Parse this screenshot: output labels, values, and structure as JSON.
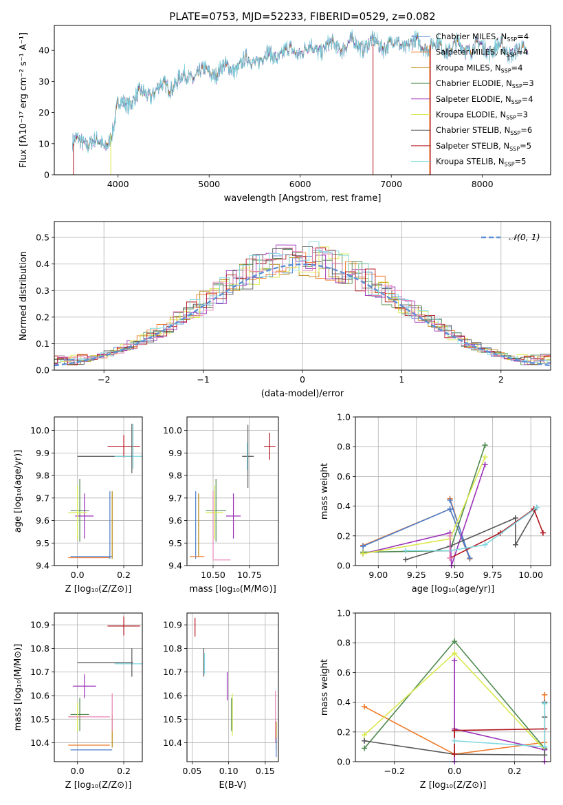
{
  "title": "PLATE=0753, MJD=52233, FIBERID=0529, z=0.082",
  "colors": {
    "chabrier_miles": "#4d7fcf",
    "salpeter_miles": "#f07a2a",
    "kroupa_miles": "#b8860b",
    "chabrier_elodie": "#4f8a4f",
    "salpeter_elodie": "#9b30b8",
    "kroupa_elodie": "#d9e84a",
    "chabrier_stelib": "#555555",
    "salpeter_stelib": "#b0141c",
    "kroupa_stelib": "#7fd8e0",
    "pink": "#e884b8",
    "normal": "#5b8fd6"
  },
  "legend_labels": [
    {
      "key": "chabrier_miles",
      "text": "Chabrier MILES, N",
      "sub": "SSP",
      "tail": "=4"
    },
    {
      "key": "salpeter_miles",
      "text": "Salpeter MILES, N",
      "sub": "SSP",
      "tail": "=4"
    },
    {
      "key": "kroupa_miles",
      "text": "Kroupa MILES, N",
      "sub": "SSP",
      "tail": "=4"
    },
    {
      "key": "chabrier_elodie",
      "text": "Chabrier ELODIE, N",
      "sub": "SSP",
      "tail": "=3"
    },
    {
      "key": "salpeter_elodie",
      "text": "Salpeter ELODIE, N",
      "sub": "SSP",
      "tail": "=4"
    },
    {
      "key": "kroupa_elodie",
      "text": "Kroupa ELODIE, N",
      "sub": "SSP",
      "tail": "=3"
    },
    {
      "key": "chabrier_stelib",
      "text": "Chabrier STELIB, N",
      "sub": "SSP",
      "tail": "=6"
    },
    {
      "key": "salpeter_stelib",
      "text": "Salpeter STELIB, N",
      "sub": "SSP",
      "tail": "=5"
    },
    {
      "key": "kroupa_stelib",
      "text": "Kroupa STELIB, N",
      "sub": "SSP",
      "tail": "=5"
    }
  ],
  "chart_data": [
    {
      "id": "spectrum",
      "type": "line",
      "xlabel": "wavelength [Angstrom, rest frame]",
      "ylabel": "Flux [fλ10⁻¹⁷ erg cm⁻² s⁻¹ A⁻¹]",
      "xlim": [
        3300,
        8750
      ],
      "ylim": [
        0,
        48
      ],
      "xticks": [
        4000,
        5000,
        6000,
        7000,
        8000
      ],
      "yticks": [
        0,
        10,
        20,
        30,
        40
      ],
      "continuum": [
        [
          3500,
          10
        ],
        [
          3700,
          11
        ],
        [
          3850,
          9
        ],
        [
          3950,
          15
        ],
        [
          4000,
          22
        ],
        [
          4200,
          25
        ],
        [
          4500,
          28
        ],
        [
          4800,
          32
        ],
        [
          5000,
          33
        ],
        [
          5200,
          34
        ],
        [
          5500,
          37
        ],
        [
          5800,
          39
        ],
        [
          6000,
          40
        ],
        [
          6300,
          41
        ],
        [
          6600,
          42
        ],
        [
          7000,
          42
        ],
        [
          7300,
          42
        ],
        [
          7600,
          41
        ],
        [
          8000,
          41
        ],
        [
          8300,
          40
        ],
        [
          8500,
          39
        ]
      ],
      "grid": false
    },
    {
      "id": "residuals",
      "type": "histogram",
      "xlabel": "(data-model)/error",
      "ylabel": "Normed distribution",
      "xlim": [
        -2.5,
        2.5
      ],
      "ylim": [
        0,
        0.56
      ],
      "xticks": [
        -2,
        -1,
        0,
        1,
        2
      ],
      "yticks": [
        0.0,
        0.1,
        0.2,
        0.3,
        0.4,
        0.5
      ],
      "legend": "𝒩(0, 1)",
      "grid": true
    },
    {
      "id": "age_vs_Z",
      "type": "errorbar",
      "xlabel": "Z [log₁₀(Z/Z⊙)]",
      "ylabel": "age  [log₁₀(age/yr)]",
      "xlim": [
        -0.1,
        0.28
      ],
      "ylim": [
        9.4,
        10.06
      ],
      "xticks": [
        0.0,
        0.2
      ],
      "yticks": [
        9.4,
        9.5,
        9.6,
        9.7,
        9.8,
        9.9,
        10.0
      ],
      "points": [
        {
          "c": "chabrier_miles",
          "x": 0.06,
          "y": 9.44,
          "xe": 0.09,
          "ye": 0.0
        },
        {
          "c": "salpeter_miles",
          "x": 0.05,
          "y": 9.435,
          "xe": 0.09,
          "ye": 0.0
        },
        {
          "c": "kroupa_miles",
          "x": 0.15,
          "y": 9.58,
          "xe": 0.0,
          "ye": 0.15
        },
        {
          "c": "chabrier_elodie",
          "x": 0.01,
          "y": 9.645,
          "xe": 0.04,
          "ye": 0.14
        },
        {
          "c": "salpeter_elodie",
          "x": 0.03,
          "y": 9.62,
          "xe": 0.04,
          "ye": 0.1
        },
        {
          "c": "kroupa_elodie",
          "x": 0.0,
          "y": 9.635,
          "xe": 0.04,
          "ye": 0.12
        },
        {
          "c": "chabrier_stelib",
          "x": 0.12,
          "y": 9.885,
          "xe": 0.12,
          "ye": 0.0
        },
        {
          "c": "salpeter_stelib",
          "x": 0.2,
          "y": 9.93,
          "xe": 0.07,
          "ye": 0.05
        },
        {
          "c": "kroupa_stelib",
          "x": 0.23,
          "y": 9.885,
          "xe": 0.07,
          "ye": 0.0
        },
        {
          "c": "chabrier_miles",
          "x": 0.14,
          "y": 9.58,
          "xe": 0.0,
          "ye": 0.15
        },
        {
          "c": "chabrier_stelib",
          "x": 0.235,
          "y": 9.92,
          "xe": 0.0,
          "ye": 0.11
        },
        {
          "c": "kroupa_stelib",
          "x": 0.24,
          "y": 9.93,
          "xe": 0.0,
          "ye": 0.1
        }
      ],
      "grid": true
    },
    {
      "id": "age_vs_mass",
      "type": "errorbar",
      "xlabel": "mass [log₁₀(M/M⊙)]",
      "xlim": [
        10.32,
        10.95
      ],
      "ylim": [
        9.4,
        10.06
      ],
      "xticks": [
        10.5,
        10.75
      ],
      "yticks": [
        9.4,
        9.5,
        9.6,
        9.7,
        9.8,
        9.9,
        10.0
      ],
      "points": [
        {
          "c": "chabrier_miles",
          "x": 10.38,
          "y": 9.58,
          "xe": 0.0,
          "ye": 0.15
        },
        {
          "c": "salpeter_miles",
          "x": 10.39,
          "y": 9.44,
          "xe": 0.05,
          "ye": 0.0
        },
        {
          "c": "kroupa_miles",
          "x": 10.4,
          "y": 9.58,
          "xe": 0.0,
          "ye": 0.14
        },
        {
          "c": "chabrier_elodie",
          "x": 10.52,
          "y": 9.645,
          "xe": 0.07,
          "ye": 0.14
        },
        {
          "c": "salpeter_elodie",
          "x": 10.64,
          "y": 9.62,
          "xe": 0.05,
          "ye": 0.1
        },
        {
          "c": "kroupa_elodie",
          "x": 10.51,
          "y": 9.635,
          "xe": 0.06,
          "ye": 0.12
        },
        {
          "c": "pink",
          "x": 10.5,
          "y": 9.58,
          "xe": 0.0,
          "ye": 0.15
        },
        {
          "c": "pink",
          "x": 10.56,
          "y": 9.425,
          "xe": 0.06,
          "ye": 0.0
        },
        {
          "c": "chabrier_stelib",
          "x": 10.74,
          "y": 9.885,
          "xe": 0.04,
          "ye": 0.14
        },
        {
          "c": "salpeter_stelib",
          "x": 10.89,
          "y": 9.93,
          "xe": 0.04,
          "ye": 0.06
        },
        {
          "c": "kroupa_stelib",
          "x": 10.735,
          "y": 9.885,
          "xe": 0.0,
          "ye": 0.06
        }
      ],
      "grid": true
    },
    {
      "id": "weight_vs_age",
      "type": "line",
      "xlabel": "age  [log₁₀(age/yr)]",
      "ylabel": "mass weight",
      "xlim": [
        8.85,
        10.13
      ],
      "ylim": [
        0,
        1
      ],
      "xticks": [
        9.0,
        9.25,
        9.5,
        9.75,
        10.0
      ],
      "yticks": [
        0.0,
        0.2,
        0.4,
        0.6,
        0.8,
        1.0
      ],
      "series": [
        {
          "c": "salpeter_miles",
          "pts": [
            [
              8.9,
              0.135
            ],
            [
              9.47,
              0.38
            ],
            [
              9.6,
              0.045
            ],
            [
              9.47,
              0.45
            ]
          ]
        },
        {
          "c": "chabrier_miles",
          "pts": [
            [
              8.9,
              0.13
            ],
            [
              9.47,
              0.38
            ],
            [
              9.6,
              0.05
            ],
            [
              9.47,
              0.44
            ]
          ]
        },
        {
          "c": "chabrier_elodie",
          "pts": [
            [
              8.9,
              0.09
            ],
            [
              9.47,
              0.1
            ],
            [
              9.7,
              0.81
            ]
          ]
        },
        {
          "c": "salpeter_elodie",
          "pts": [
            [
              8.9,
              0.08
            ],
            [
              9.47,
              0.22
            ],
            [
              9.48,
              0.0
            ],
            [
              9.7,
              0.68
            ]
          ]
        },
        {
          "c": "kroupa_elodie",
          "pts": [
            [
              8.9,
              0.08
            ],
            [
              9.47,
              0.18
            ],
            [
              9.7,
              0.73
            ]
          ]
        },
        {
          "c": "chabrier_stelib",
          "pts": [
            [
              9.18,
              0.04
            ],
            [
              9.47,
              0.13
            ],
            [
              9.9,
              0.32
            ],
            [
              9.9,
              0.14
            ],
            [
              10.04,
              0.39
            ]
          ]
        },
        {
          "c": "salpeter_stelib",
          "pts": [
            [
              9.47,
              0.05
            ],
            [
              9.8,
              0.22
            ],
            [
              10.02,
              0.38
            ],
            [
              10.08,
              0.22
            ]
          ]
        },
        {
          "c": "kroupa_stelib",
          "pts": [
            [
              9.18,
              0.1
            ],
            [
              9.47,
              0.1
            ],
            [
              9.7,
              0.14
            ],
            [
              10.04,
              0.39
            ]
          ]
        },
        {
          "c": "pink",
          "pts": [
            [
              9.47,
              0.05
            ],
            [
              9.47,
              0.2
            ]
          ]
        }
      ],
      "grid": true
    },
    {
      "id": "mass_vs_Z",
      "type": "errorbar",
      "xlabel": "Z [log₁₀(Z/Z⊙)]",
      "ylabel": "mass [log₁₀(M/M⊙)]",
      "xlim": [
        -0.1,
        0.28
      ],
      "ylim": [
        10.32,
        10.95
      ],
      "xticks": [
        0.0,
        0.2
      ],
      "yticks": [
        10.4,
        10.5,
        10.6,
        10.7,
        10.8,
        10.9
      ],
      "points": [
        {
          "c": "chabrier_miles",
          "x": 0.06,
          "y": 10.37,
          "xe": 0.09,
          "ye": 0.0
        },
        {
          "c": "salpeter_miles",
          "x": 0.05,
          "y": 10.39,
          "xe": 0.09,
          "ye": 0.0
        },
        {
          "c": "kroupa_miles",
          "x": 0.15,
          "y": 10.45,
          "xe": 0.0,
          "ye": 0.07
        },
        {
          "c": "chabrier_elodie",
          "x": 0.01,
          "y": 10.52,
          "xe": 0.04,
          "ye": 0.07
        },
        {
          "c": "salpeter_elodie",
          "x": 0.03,
          "y": 10.64,
          "xe": 0.05,
          "ye": 0.05
        },
        {
          "c": "kroupa_elodie",
          "x": 0.0,
          "y": 10.51,
          "xe": 0.04,
          "ye": 0.06
        },
        {
          "c": "pink",
          "x": 0.05,
          "y": 10.51,
          "xe": 0.09,
          "ye": 0.0
        },
        {
          "c": "pink",
          "x": 0.15,
          "y": 10.53,
          "xe": 0.0,
          "ye": 0.08
        },
        {
          "c": "chabrier_stelib",
          "x": 0.12,
          "y": 10.74,
          "xe": 0.12,
          "ye": 0.0
        },
        {
          "c": "salpeter_stelib",
          "x": 0.2,
          "y": 10.895,
          "xe": 0.07,
          "ye": 0.04
        },
        {
          "c": "kroupa_stelib",
          "x": 0.23,
          "y": 10.735,
          "xe": 0.07,
          "ye": 0.0
        },
        {
          "c": "chabrier_stelib",
          "x": 0.235,
          "y": 10.74,
          "xe": 0.0,
          "ye": 0.06
        }
      ],
      "grid": true
    },
    {
      "id": "mass_vs_ebv",
      "type": "errorbar",
      "xlabel": "E(B-V)",
      "xlim": [
        0.043,
        0.168
      ],
      "ylim": [
        10.32,
        10.95
      ],
      "xticks": [
        0.05,
        0.1,
        0.15
      ],
      "yticks": [
        10.4,
        10.5,
        10.6,
        10.7,
        10.8,
        10.9
      ],
      "points": [
        {
          "c": "salpeter_stelib",
          "x": 0.054,
          "y": 10.89,
          "xe": 0.0,
          "ye": 0.04
        },
        {
          "c": "chabrier_stelib",
          "x": 0.066,
          "y": 10.74,
          "xe": 0.0,
          "ye": 0.06
        },
        {
          "c": "kroupa_stelib",
          "x": 0.067,
          "y": 10.735,
          "xe": 0.0,
          "ye": 0.045
        },
        {
          "c": "salpeter_elodie",
          "x": 0.098,
          "y": 10.64,
          "xe": 0.0,
          "ye": 0.06
        },
        {
          "c": "kroupa_elodie",
          "x": 0.105,
          "y": 10.52,
          "xe": 0.0,
          "ye": 0.09
        },
        {
          "c": "chabrier_elodie",
          "x": 0.104,
          "y": 10.52,
          "xe": 0.0,
          "ye": 0.07
        },
        {
          "c": "pink",
          "x": 0.164,
          "y": 10.51,
          "xe": 0.0,
          "ye": 0.11
        },
        {
          "c": "kroupa_miles",
          "x": 0.165,
          "y": 10.43,
          "xe": 0.0,
          "ye": 0.06
        },
        {
          "c": "chabrier_miles",
          "x": 0.165,
          "y": 10.38,
          "xe": 0.0,
          "ye": 0.04
        }
      ],
      "grid": true
    },
    {
      "id": "weight_vs_Z",
      "type": "line",
      "xlabel": "Z [log₁₀(Z/Z⊙)]",
      "ylabel": "mass weight",
      "xlim": [
        -0.33,
        0.32
      ],
      "ylim": [
        0,
        1
      ],
      "xticks": [
        -0.2,
        0.0,
        0.2
      ],
      "yticks": [
        0.0,
        0.2,
        0.4,
        0.6,
        0.8,
        1.0
      ],
      "series": [
        {
          "c": "salpeter_miles",
          "pts": [
            [
              -0.3,
              0.37
            ],
            [
              0.0,
              0.05
            ],
            [
              0.3,
              0.13
            ],
            [
              0.3,
              0.45
            ]
          ]
        },
        {
          "c": "chabrier_elodie",
          "pts": [
            [
              -0.3,
              0.09
            ],
            [
              0.0,
              0.81
            ],
            [
              0.3,
              0.09
            ]
          ]
        },
        {
          "c": "kroupa_elodie",
          "pts": [
            [
              -0.3,
              0.18
            ],
            [
              0.0,
              0.73
            ],
            [
              0.3,
              0.08
            ]
          ]
        },
        {
          "c": "salpeter_elodie",
          "pts": [
            [
              0.0,
              0.0
            ],
            [
              0.0,
              0.68
            ],
            [
              0.0,
              0.22
            ],
            [
              0.3,
              0.08
            ],
            [
              0.3,
              0.0
            ]
          ]
        },
        {
          "c": "chabrier_stelib",
          "pts": [
            [
              -0.3,
              0.14
            ],
            [
              0.0,
              0.05
            ],
            [
              0.3,
              0.045
            ],
            [
              0.3,
              0.4
            ],
            [
              0.3,
              0.3
            ]
          ]
        },
        {
          "c": "salpeter_stelib",
          "pts": [
            [
              0.0,
              0.05
            ],
            [
              0.0,
              0.21
            ],
            [
              0.3,
              0.22
            ]
          ]
        },
        {
          "c": "kroupa_stelib",
          "pts": [
            [
              0.0,
              0.14
            ],
            [
              0.3,
              0.1
            ],
            [
              0.3,
              0.39
            ]
          ]
        }
      ],
      "grid": true
    }
  ]
}
